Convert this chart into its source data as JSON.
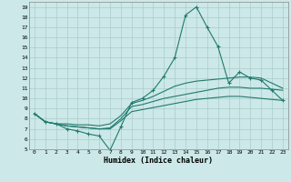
{
  "xlabel": "Humidex (Indice chaleur)",
  "ylabel": "",
  "background_color": "#cce8e8",
  "line_color": "#217a6e",
  "grid_color": "#aacccc",
  "xlim": [
    -0.5,
    23.5
  ],
  "ylim": [
    5,
    19.5
  ],
  "xticks": [
    0,
    1,
    2,
    3,
    4,
    5,
    6,
    7,
    8,
    9,
    10,
    11,
    12,
    13,
    14,
    15,
    16,
    17,
    18,
    19,
    20,
    21,
    22,
    23
  ],
  "yticks": [
    5,
    6,
    7,
    8,
    9,
    10,
    11,
    12,
    13,
    14,
    15,
    16,
    17,
    18,
    19
  ],
  "line1_x": [
    0,
    1,
    2,
    3,
    4,
    5,
    6,
    7,
    8,
    9,
    10,
    11,
    12,
    13,
    14,
    15,
    16,
    17,
    18,
    19,
    20,
    21,
    22,
    23
  ],
  "line1_y": [
    8.5,
    7.7,
    7.5,
    7.0,
    6.8,
    6.5,
    6.3,
    4.9,
    7.2,
    9.6,
    10.0,
    10.8,
    12.2,
    14.0,
    18.2,
    19.0,
    17.0,
    15.1,
    11.5,
    12.6,
    12.0,
    11.8,
    10.8,
    9.8
  ],
  "line2_x": [
    0,
    1,
    2,
    3,
    4,
    5,
    6,
    7,
    8,
    9,
    10,
    11,
    12,
    13,
    14,
    15,
    16,
    17,
    18,
    19,
    20,
    21,
    22,
    23
  ],
  "line2_y": [
    8.5,
    7.7,
    7.5,
    7.5,
    7.4,
    7.4,
    7.3,
    7.5,
    8.3,
    9.5,
    9.8,
    10.2,
    10.7,
    11.2,
    11.5,
    11.7,
    11.8,
    11.9,
    12.0,
    12.1,
    12.1,
    12.0,
    11.5,
    11.0
  ],
  "line3_x": [
    0,
    1,
    2,
    3,
    4,
    5,
    6,
    7,
    8,
    9,
    10,
    11,
    12,
    13,
    14,
    15,
    16,
    17,
    18,
    19,
    20,
    21,
    22,
    23
  ],
  "line3_y": [
    8.5,
    7.7,
    7.5,
    7.3,
    7.2,
    7.1,
    7.0,
    7.1,
    8.0,
    9.2,
    9.4,
    9.7,
    10.0,
    10.2,
    10.4,
    10.6,
    10.8,
    11.0,
    11.1,
    11.1,
    11.0,
    11.0,
    10.9,
    10.8
  ],
  "line4_x": [
    0,
    1,
    2,
    3,
    4,
    5,
    6,
    7,
    8,
    9,
    10,
    11,
    12,
    13,
    14,
    15,
    16,
    17,
    18,
    19,
    20,
    21,
    22,
    23
  ],
  "line4_y": [
    8.5,
    7.7,
    7.5,
    7.3,
    7.2,
    7.1,
    7.0,
    7.0,
    7.8,
    8.7,
    8.9,
    9.1,
    9.3,
    9.5,
    9.7,
    9.9,
    10.0,
    10.1,
    10.2,
    10.2,
    10.1,
    10.0,
    9.9,
    9.8
  ]
}
